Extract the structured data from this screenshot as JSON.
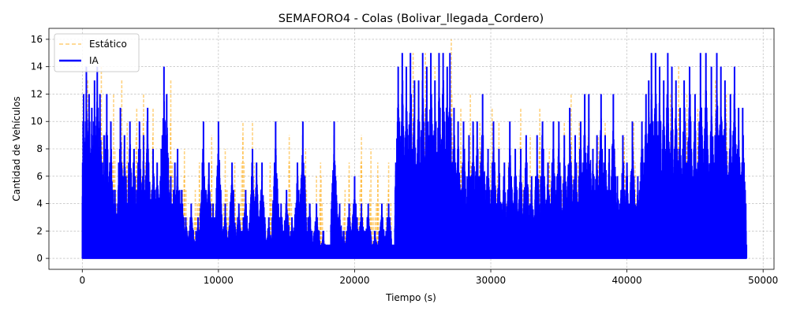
{
  "chart_data": {
    "type": "line",
    "title": "SEMAFORO4 - Colas (Bolivar_llegada_Cordero)",
    "xlabel": "Tiempo (s)",
    "ylabel": "Cantidad de Vehículos",
    "xlim": [
      -2450,
      50800
    ],
    "ylim": [
      -0.8,
      16.8
    ],
    "xticks": [
      0,
      10000,
      20000,
      30000,
      40000,
      50000
    ],
    "yticks": [
      0,
      2,
      4,
      6,
      8,
      10,
      12,
      14,
      16
    ],
    "grid": true,
    "legend_position": "top-left",
    "series": [
      {
        "name": "Estático",
        "color": "#ffa500",
        "style": "dashed",
        "x_end": 48800,
        "peaks": [
          [
            400,
            13
          ],
          [
            900,
            10
          ],
          [
            1400,
            14
          ],
          [
            2300,
            12
          ],
          [
            2900,
            13
          ],
          [
            3300,
            10
          ],
          [
            4000,
            11
          ],
          [
            4500,
            12
          ],
          [
            5200,
            11
          ],
          [
            6500,
            13
          ],
          [
            7500,
            8
          ],
          [
            8300,
            5
          ],
          [
            8600,
            7
          ],
          [
            9500,
            9
          ],
          [
            10500,
            8
          ],
          [
            11200,
            7
          ],
          [
            11800,
            10
          ],
          [
            12500,
            10
          ],
          [
            13200,
            6
          ],
          [
            13800,
            7
          ],
          [
            14400,
            4
          ],
          [
            15200,
            9
          ],
          [
            15800,
            7
          ],
          [
            16400,
            8
          ],
          [
            17200,
            6
          ],
          [
            17500,
            7
          ],
          [
            18600,
            6
          ],
          [
            19300,
            5
          ],
          [
            19600,
            7
          ],
          [
            20100,
            4
          ],
          [
            20500,
            9
          ],
          [
            21200,
            8
          ],
          [
            21700,
            7
          ],
          [
            22500,
            7
          ],
          [
            23500,
            14
          ],
          [
            24300,
            15
          ],
          [
            25200,
            15
          ],
          [
            25900,
            14
          ],
          [
            26500,
            15
          ],
          [
            27100,
            16
          ],
          [
            27800,
            11
          ],
          [
            28500,
            12
          ],
          [
            29200,
            10
          ],
          [
            30100,
            11
          ],
          [
            30600,
            10
          ],
          [
            31300,
            7
          ],
          [
            32200,
            11
          ],
          [
            32900,
            9
          ],
          [
            33600,
            11
          ],
          [
            34300,
            8
          ],
          [
            34900,
            7
          ],
          [
            35400,
            10
          ],
          [
            35900,
            12
          ],
          [
            36500,
            10
          ],
          [
            37200,
            11
          ],
          [
            37900,
            9
          ],
          [
            38400,
            10
          ],
          [
            39100,
            8
          ],
          [
            39800,
            9
          ],
          [
            40500,
            10
          ],
          [
            41100,
            8
          ],
          [
            41800,
            14
          ],
          [
            42400,
            10
          ],
          [
            43200,
            12
          ],
          [
            43800,
            14
          ],
          [
            44400,
            12
          ],
          [
            45200,
            11
          ],
          [
            45800,
            13
          ],
          [
            46500,
            13
          ],
          [
            47300,
            12
          ],
          [
            47900,
            14
          ],
          [
            48500,
            9
          ]
        ]
      },
      {
        "name": "IA",
        "color": "#0000ff",
        "style": "solid",
        "x_end": 48800,
        "peaks": [
          [
            100,
            12
          ],
          [
            300,
            14
          ],
          [
            500,
            12
          ],
          [
            700,
            11
          ],
          [
            900,
            13
          ],
          [
            1100,
            14
          ],
          [
            1300,
            12
          ],
          [
            1600,
            9
          ],
          [
            1800,
            12
          ],
          [
            2100,
            10
          ],
          [
            2400,
            5
          ],
          [
            2800,
            11
          ],
          [
            3100,
            9
          ],
          [
            3500,
            10
          ],
          [
            3800,
            8
          ],
          [
            4200,
            10
          ],
          [
            4500,
            9
          ],
          [
            4800,
            11
          ],
          [
            5200,
            8
          ],
          [
            5500,
            7
          ],
          [
            5800,
            8
          ],
          [
            6000,
            14
          ],
          [
            6200,
            12
          ],
          [
            6500,
            6
          ],
          [
            6800,
            7
          ],
          [
            7000,
            8
          ],
          [
            7300,
            5
          ],
          [
            7600,
            3
          ],
          [
            8000,
            4
          ],
          [
            8500,
            3
          ],
          [
            8900,
            10
          ],
          [
            9300,
            7
          ],
          [
            9600,
            4
          ],
          [
            10000,
            10
          ],
          [
            10500,
            4
          ],
          [
            11000,
            7
          ],
          [
            11500,
            4
          ],
          [
            12000,
            5
          ],
          [
            12500,
            8
          ],
          [
            12800,
            7
          ],
          [
            13200,
            7
          ],
          [
            13700,
            3
          ],
          [
            14200,
            10
          ],
          [
            14600,
            4
          ],
          [
            15000,
            5
          ],
          [
            15400,
            3
          ],
          [
            15800,
            7
          ],
          [
            16200,
            10
          ],
          [
            16700,
            4
          ],
          [
            17200,
            4
          ],
          [
            17700,
            2
          ],
          [
            18200,
            1
          ],
          [
            18500,
            10
          ],
          [
            18900,
            4
          ],
          [
            19200,
            2
          ],
          [
            19600,
            4
          ],
          [
            20000,
            6
          ],
          [
            20500,
            4
          ],
          [
            21000,
            4
          ],
          [
            21500,
            2
          ],
          [
            22000,
            4
          ],
          [
            22500,
            4
          ],
          [
            23200,
            14
          ],
          [
            23500,
            15
          ],
          [
            23800,
            14
          ],
          [
            24100,
            15
          ],
          [
            24400,
            13
          ],
          [
            24700,
            13
          ],
          [
            25000,
            15
          ],
          [
            25300,
            14
          ],
          [
            25600,
            15
          ],
          [
            25900,
            13
          ],
          [
            26200,
            15
          ],
          [
            26500,
            15
          ],
          [
            26800,
            14
          ],
          [
            27000,
            15
          ],
          [
            27300,
            11
          ],
          [
            27600,
            10
          ],
          [
            28000,
            10
          ],
          [
            28400,
            9
          ],
          [
            28700,
            10
          ],
          [
            29000,
            10
          ],
          [
            29400,
            12
          ],
          [
            29800,
            8
          ],
          [
            30200,
            10
          ],
          [
            30600,
            8
          ],
          [
            31000,
            7
          ],
          [
            31400,
            10
          ],
          [
            31800,
            8
          ],
          [
            32200,
            8
          ],
          [
            32600,
            9
          ],
          [
            33000,
            6
          ],
          [
            33400,
            9
          ],
          [
            33800,
            10
          ],
          [
            34200,
            7
          ],
          [
            34600,
            10
          ],
          [
            35000,
            10
          ],
          [
            35400,
            9
          ],
          [
            35800,
            11
          ],
          [
            36200,
            9
          ],
          [
            36600,
            10
          ],
          [
            36900,
            12
          ],
          [
            37200,
            12
          ],
          [
            37500,
            8
          ],
          [
            37800,
            9
          ],
          [
            38100,
            12
          ],
          [
            38400,
            9
          ],
          [
            38700,
            8
          ],
          [
            39000,
            12
          ],
          [
            39300,
            6
          ],
          [
            39700,
            9
          ],
          [
            40000,
            7
          ],
          [
            40400,
            10
          ],
          [
            40800,
            6
          ],
          [
            41100,
            10
          ],
          [
            41400,
            12
          ],
          [
            41600,
            13
          ],
          [
            41800,
            15
          ],
          [
            42100,
            15
          ],
          [
            42400,
            14
          ],
          [
            42700,
            13
          ],
          [
            43000,
            15
          ],
          [
            43300,
            14
          ],
          [
            43600,
            13
          ],
          [
            43900,
            11
          ],
          [
            44200,
            13
          ],
          [
            44600,
            14
          ],
          [
            45000,
            12
          ],
          [
            45400,
            15
          ],
          [
            45800,
            15
          ],
          [
            46200,
            14
          ],
          [
            46600,
            15
          ],
          [
            46900,
            14
          ],
          [
            47200,
            13
          ],
          [
            47600,
            12
          ],
          [
            47900,
            14
          ],
          [
            48200,
            11
          ],
          [
            48500,
            11
          ]
        ]
      }
    ]
  }
}
